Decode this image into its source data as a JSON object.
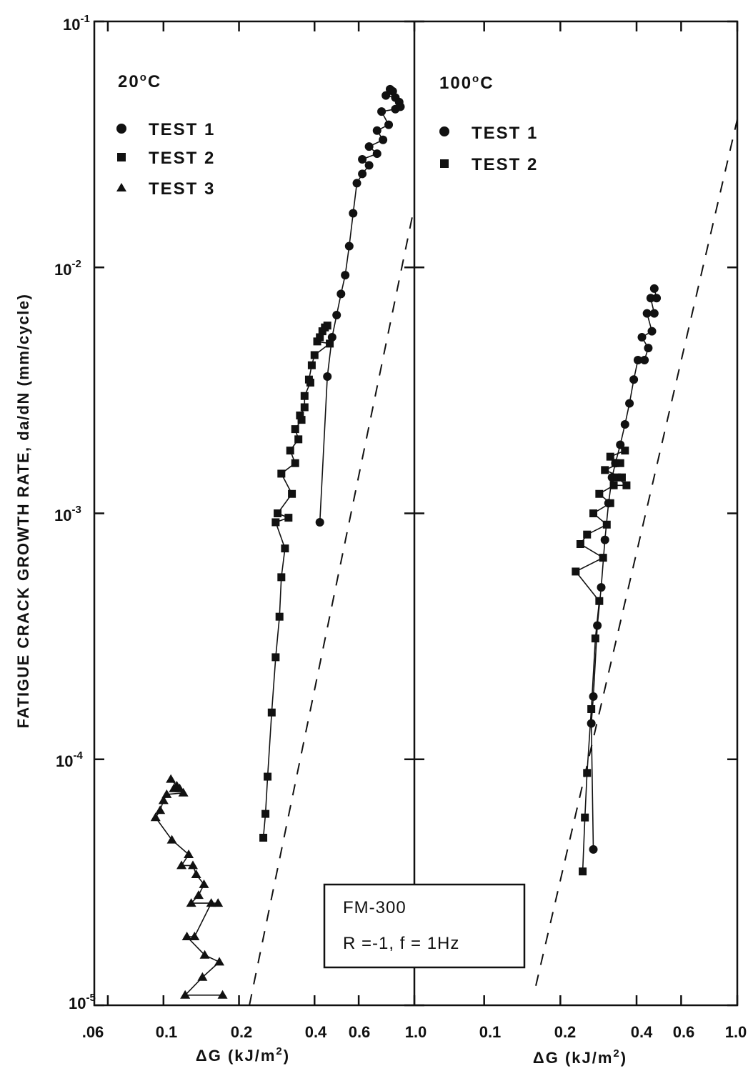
{
  "chart_data": {
    "type": "scatter",
    "ylabel": "FATIGUE CRACK GROWTH RATE, da/dN (mm/cycle)",
    "yscale": "log",
    "ylim": [
      1e-05,
      0.1
    ],
    "ytick_labels": [
      {
        "value": 0.1,
        "base": "10",
        "exp": "-1"
      },
      {
        "value": 0.01,
        "base": "10",
        "exp": "-2"
      },
      {
        "value": 0.001,
        "base": "10",
        "exp": "-3"
      },
      {
        "value": 0.0001,
        "base": "10",
        "exp": "-4"
      },
      {
        "value": 1e-05,
        "base": "10",
        "exp": "-5"
      }
    ],
    "box": {
      "line1": "FM-300",
      "line2": "R =-1,  f = 1Hz"
    },
    "panels": [
      {
        "title_num": "20",
        "title_unit": "C",
        "xlabel_prefix": "ΔG (kJ/m",
        "xlabel_sup": "2",
        "xlabel_suffix": ")",
        "xscale": "log",
        "xlim": [
          0.053,
          1.0
        ],
        "xtick_labels": [
          {
            "value": 0.06,
            "label": ".06"
          },
          {
            "value": 0.1,
            "label": "0.1"
          },
          {
            "value": 0.2,
            "label": "0.2"
          },
          {
            "value": 0.4,
            "label": "0.4"
          },
          {
            "value": 0.6,
            "label": "0.6"
          },
          {
            "value": 1.0,
            "label": "1.0"
          }
        ],
        "legend": [
          {
            "marker": "circle",
            "label": "TEST 1"
          },
          {
            "marker": "square",
            "label": "TEST 2"
          },
          {
            "marker": "triangle",
            "label": "TEST 3"
          }
        ],
        "series": [
          {
            "name": "TEST 1",
            "marker": "circle",
            "x": [
              0.42,
              0.45,
              0.47,
              0.49,
              0.51,
              0.53,
              0.55,
              0.57,
              0.59,
              0.62,
              0.66,
              0.71,
              0.74,
              0.77,
              0.8,
              0.82,
              0.84,
              0.62,
              0.66,
              0.71,
              0.75,
              0.79,
              0.84,
              0.87,
              0.88
            ],
            "y": [
              0.00092,
              0.0036,
              0.0052,
              0.0064,
              0.0078,
              0.0093,
              0.0122,
              0.0166,
              0.022,
              0.0275,
              0.031,
              0.036,
              0.043,
              0.05,
              0.053,
              0.052,
              0.049,
              0.024,
              0.026,
              0.029,
              0.033,
              0.038,
              0.044,
              0.047,
              0.045
            ]
          },
          {
            "name": "TEST 2",
            "marker": "square",
            "x": [
              0.25,
              0.255,
              0.26,
              0.27,
              0.28,
              0.29,
              0.295,
              0.305,
              0.315,
              0.325,
              0.335,
              0.345,
              0.355,
              0.365,
              0.38,
              0.39,
              0.41,
              0.43,
              0.45,
              0.28,
              0.285,
              0.295,
              0.32,
              0.335,
              0.35,
              0.365,
              0.385,
              0.4,
              0.42,
              0.44,
              0.46
            ],
            "y": [
              4.8e-05,
              6e-05,
              8.5e-05,
              0.000155,
              0.00026,
              0.00038,
              0.00055,
              0.00072,
              0.00096,
              0.0012,
              0.0016,
              0.002,
              0.0024,
              0.0027,
              0.0035,
              0.004,
              0.005,
              0.0055,
              0.0058,
              0.00092,
              0.001,
              0.00145,
              0.0018,
              0.0022,
              0.0025,
              0.003,
              0.0034,
              0.0044,
              0.0052,
              0.0057,
              0.0049
            ]
          },
          {
            "name": "TEST 3",
            "marker": "triangle",
            "x": [
              0.093,
              0.097,
              0.1,
              0.103,
              0.107,
              0.11,
              0.113,
              0.116,
              0.12,
              0.126,
              0.131,
              0.135,
              0.145,
              0.155,
              0.165,
              0.108,
              0.118,
              0.124,
              0.133,
              0.146,
              0.167,
              0.172,
              0.122,
              0.129,
              0.138,
              0.143
            ],
            "y": [
              5.8e-05,
              6.2e-05,
              6.8e-05,
              7.2e-05,
              8.3e-05,
              7.6e-05,
              7.8e-05,
              7.6e-05,
              7.3e-05,
              4.1e-05,
              3.7e-05,
              3.4e-05,
              3.1e-05,
              2.6e-05,
              2.6e-05,
              4.7e-05,
              3.7e-05,
              1.9e-05,
              1.9e-05,
              1.6e-05,
              1.5e-05,
              1.1e-05,
              1.1e-05,
              2.6e-05,
              2.8e-05,
              1.3e-05
            ]
          }
        ],
        "dashed_line": {
          "x": [
            0.22,
            0.98
          ],
          "y": [
            1e-05,
            0.016
          ]
        }
      },
      {
        "title_num": "100",
        "title_unit": "C",
        "xlabel_prefix": "ΔG (kJ/m",
        "xlabel_sup": "2",
        "xlabel_suffix": ")",
        "xscale": "log",
        "xlim": [
          0.053,
          1.0
        ],
        "xtick_labels": [
          {
            "value": 0.1,
            "label": "0.1"
          },
          {
            "value": 0.2,
            "label": "0.2"
          },
          {
            "value": 0.4,
            "label": "0.4"
          },
          {
            "value": 0.6,
            "label": "0.6"
          },
          {
            "value": 1.0,
            "label": "1.0"
          }
        ],
        "legend": [
          {
            "marker": "circle",
            "label": "TEST 1"
          },
          {
            "marker": "square",
            "label": "TEST 2"
          }
        ],
        "series": [
          {
            "name": "TEST 1",
            "marker": "circle",
            "x": [
              0.27,
              0.265,
              0.27,
              0.28,
              0.29,
              0.3,
              0.31,
              0.32,
              0.33,
              0.345,
              0.36,
              0.375,
              0.39,
              0.405,
              0.42,
              0.44,
              0.455,
              0.47,
              0.48,
              0.47,
              0.46,
              0.445,
              0.43
            ],
            "y": [
              4.3e-05,
              0.00014,
              0.00018,
              0.00035,
              0.0005,
              0.00078,
              0.0011,
              0.0014,
              0.0016,
              0.0019,
              0.0023,
              0.0028,
              0.0035,
              0.0042,
              0.0052,
              0.0065,
              0.0075,
              0.0082,
              0.0075,
              0.0065,
              0.0055,
              0.0047,
              0.0042
            ]
          },
          {
            "name": "TEST 2",
            "marker": "square",
            "x": [
              0.245,
              0.25,
              0.255,
              0.265,
              0.275,
              0.285,
              0.295,
              0.305,
              0.315,
              0.325,
              0.335,
              0.345,
              0.36,
              0.23,
              0.24,
              0.255,
              0.27,
              0.285,
              0.3,
              0.315,
              0.33,
              0.35,
              0.365
            ],
            "y": [
              3.5e-05,
              5.8e-05,
              8.8e-05,
              0.00016,
              0.00031,
              0.00044,
              0.00066,
              0.0009,
              0.0011,
              0.0013,
              0.0014,
              0.0016,
              0.0018,
              0.00058,
              0.00075,
              0.00082,
              0.001,
              0.0012,
              0.0015,
              0.0017,
              0.0016,
              0.0014,
              0.0013
            ]
          }
        ],
        "dashed_line": {
          "x": [
            0.16,
            1.0
          ],
          "y": [
            1.2e-05,
            0.04
          ]
        }
      }
    ]
  }
}
